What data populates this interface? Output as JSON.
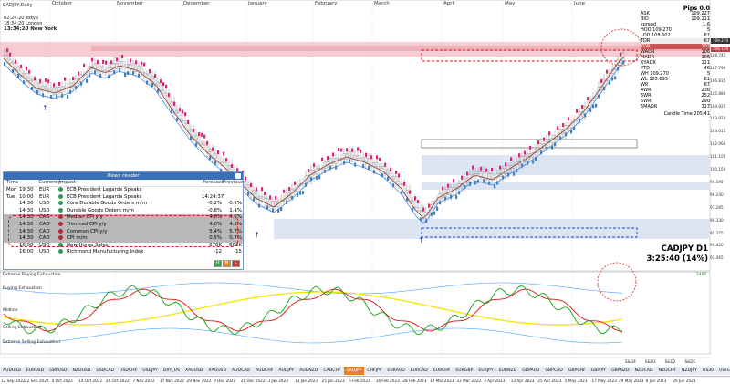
{
  "colors": {
    "bull_candle": "#3b82c4",
    "bear_candle": "#e0207a",
    "zone_red": "#f2b8c0",
    "zone_blue": "#d6deef",
    "rsi_green": "#16a116",
    "rsi_red": "#dd1111",
    "rsi_yellow": "#f2e600",
    "band_blue": "#4aa3ff",
    "active_tab": "#e8821e"
  },
  "chart": {
    "instrument_label": "CADJPY,Daily",
    "months": [
      "October",
      "November",
      "December",
      "January",
      "February",
      "March",
      "April",
      "May",
      "June"
    ],
    "clocks": [
      {
        "time": "02:24:20",
        "city": "Tokyo"
      },
      {
        "time": "18:34:20",
        "city": "London"
      },
      {
        "time": "13:34:20",
        "city": "New York"
      }
    ],
    "symbol_timeframe": "CADJPY   D1",
    "countdown": "3:25:40 (14%)",
    "price_axis": [
      "109.70",
      "108.745",
      "107.790",
      "106.835",
      "105.880",
      "104.925",
      "103.970",
      "103.015",
      "102.060",
      "101.105",
      "100.150",
      "99.195",
      "98.240",
      "97.285",
      "96.330",
      "95.375",
      "94.420",
      "93.465"
    ],
    "price_tags": [
      {
        "label": "109.270",
        "color": "#333333"
      },
      {
        "label": "108.720",
        "color": "#c0404a"
      }
    ]
  },
  "right_panel": {
    "title": "Pips 0.0",
    "rows": [
      {
        "k": "ASK",
        "v": "109.227"
      },
      {
        "k": "BID",
        "v": "109.211"
      },
      {
        "k": "spread",
        "v": "1.6"
      },
      {
        "k": "HOD 109.270",
        "v": "5"
      },
      {
        "k": "LOD 108.602",
        "v": "61"
      },
      {
        "k": "TDR",
        "v": "67"
      },
      {
        "k": "YDR",
        "v": "102"
      },
      {
        "k": "WADR",
        "v": "106"
      },
      {
        "k": "MADR",
        "v": "106"
      },
      {
        "k": "XYADR",
        "v": "111"
      },
      {
        "k": "PTD",
        "v": "46"
      },
      {
        "k": "WH 109.270",
        "v": "5"
      },
      {
        "k": "WL 105.695",
        "v": "61"
      },
      {
        "k": "WR",
        "v": "67"
      },
      {
        "k": "4WR",
        "v": "236"
      },
      {
        "k": "5WR",
        "v": "252"
      },
      {
        "k": "6WR",
        "v": "290"
      },
      {
        "k": "5MADR",
        "v": "317"
      }
    ],
    "candle_time": "Candle Time  205:41"
  },
  "news": {
    "title": "News reader",
    "columns": [
      "Time",
      "Currency",
      "Impact",
      "",
      "Forecast",
      "Previous"
    ],
    "rows": [
      {
        "day": "Mon",
        "time": "19:30",
        "cur": "EUR",
        "impact": "g",
        "event": "ECB President Lagarde Speaks",
        "forecast": "",
        "previous": ""
      },
      {
        "day": "Tue",
        "time": "10:00",
        "cur": "EUR",
        "impact": "g",
        "event": "ECB President Lagarde Speaks",
        "forecast": "14:24:37",
        "previous": ""
      },
      {
        "day": "",
        "time": "14:30",
        "cur": "USD",
        "impact": "g",
        "event": "Core Durable Goods Orders m/m",
        "forecast": "-0.2%",
        "previous": "-0.2%"
      },
      {
        "day": "",
        "time": "14:30",
        "cur": "USD",
        "impact": "g",
        "event": "Durable Goods Orders m/m",
        "forecast": "-0.8%",
        "previous": "1.1%"
      },
      {
        "day": "",
        "time": "14:30",
        "cur": "CAD",
        "impact": "r",
        "event": "Median CPI y/y",
        "forecast": "4.0%",
        "previous": "4.2%"
      },
      {
        "day": "",
        "time": "14:30",
        "cur": "CAD",
        "impact": "r",
        "event": "Trimmed CPI y/y",
        "forecast": "4.0%",
        "previous": "4.2%"
      },
      {
        "day": "",
        "time": "14:30",
        "cur": "CAD",
        "impact": "r",
        "event": "Common CPI y/y",
        "forecast": "5.4%",
        "previous": "5.7%"
      },
      {
        "day": "",
        "time": "14:30",
        "cur": "CAD",
        "impact": "r",
        "event": "CPI m/m",
        "forecast": "0.5%",
        "previous": "0.7%"
      },
      {
        "day": "",
        "time": "16:00",
        "cur": "USD",
        "impact": "g",
        "event": "New Home Sales",
        "forecast": "676K",
        "previous": "683K"
      },
      {
        "day": "",
        "time": "16:00",
        "cur": "USD",
        "impact": "g",
        "event": "Richmond Manufacturing Index",
        "forecast": "-12",
        "previous": "-15"
      }
    ],
    "impact_buttons": [
      "H",
      "M",
      "L"
    ]
  },
  "indicator": {
    "labels": [
      "Extreme Buying Exhaustion",
      "Buying Exhaustion",
      "Midline",
      "Selling Exhaustion",
      "Extreme Selling Exhaustion"
    ],
    "value": "2485"
  },
  "timeframes": [
    "S&D4",
    "S&D3",
    "S&D2",
    "S&D1"
  ],
  "symbols": [
    "AUDUSD",
    "EURUSD",
    "GBPUSD",
    "NZDUSD",
    "USDCAD",
    "USDCHF",
    "USDJPY",
    "DXY_US",
    "XAUUSD",
    "XAGUSD",
    "AUDCAD",
    "AUDCHF",
    "AUDJPY",
    "AUDNZD",
    "CADCHF",
    "CADJPY",
    "CHFJPY",
    "EURAUD",
    "EURCAD",
    "EURCHF",
    "EURGBP",
    "EURJPY",
    "EURNZD",
    "GBPAUD",
    "GBPCAD",
    "GBPCHF",
    "GBPJPY",
    "GBPNZD",
    "NZDCAD",
    "NZDCHF",
    "NZDJPY",
    "US30",
    "USTEC",
    "US500",
    "DE40",
    "XBRUSD"
  ],
  "active_symbol": "CADJPY",
  "dates": [
    "12 Sep 2022",
    "22 Sep 2022",
    "4 Oct 2022",
    "14 Oct 2022",
    "26 Oct 2022",
    "7 Nov 2022",
    "17 Nov 2022",
    "29 Nov 2022",
    "9 Dec 2022",
    "21 Dec 2022",
    "3 Jan 2023",
    "13 Jan 2023",
    "25 Jan 2023",
    "6 Feb 2023",
    "16 Feb 2023",
    "28 Feb 2023",
    "10 Mar 2023",
    "22 Mar 2023",
    "3 Apr 2023",
    "13 Apr 2023",
    "25 Apr 2023",
    "5 May 2023",
    "17 May 2023",
    "29 May 2023",
    "8 Jun 2023",
    "20 Jun 2023"
  ]
}
